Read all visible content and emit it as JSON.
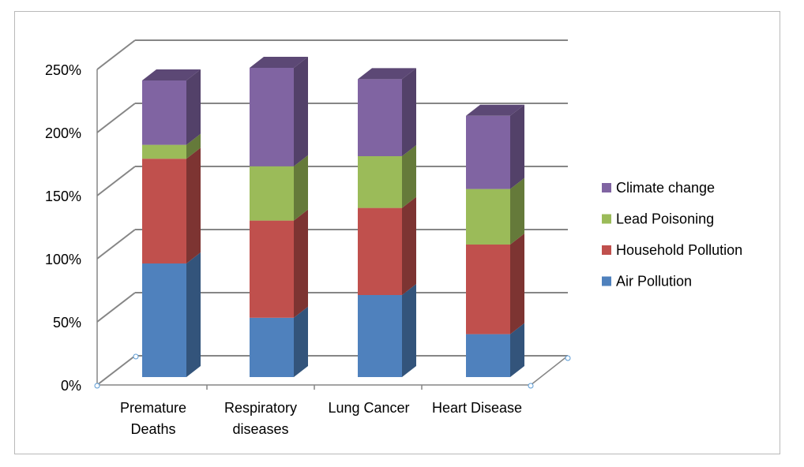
{
  "chart_data": {
    "type": "bar",
    "stacked": true,
    "three_d": true,
    "title": "",
    "xlabel": "",
    "ylabel": "",
    "categories": [
      [
        "Premature",
        "Deaths"
      ],
      [
        "Respiratory",
        "diseases"
      ],
      [
        "Lung Cancer"
      ],
      [
        "Heart Disease"
      ]
    ],
    "series": [
      {
        "name": "Air Pollution",
        "color": "#4f81bd",
        "values": [
          90,
          47,
          65,
          34
        ]
      },
      {
        "name": "Household Pollution",
        "color": "#c0504d",
        "values": [
          83,
          77,
          69,
          71
        ]
      },
      {
        "name": "Lead Poisoning",
        "color": "#9bbb59",
        "values": [
          11,
          43,
          41,
          44
        ]
      },
      {
        "name": "Climate change",
        "color": "#8064a2",
        "values": [
          51,
          78,
          61,
          58
        ]
      }
    ],
    "y_ticks": [
      "0%",
      "50%",
      "100%",
      "150%",
      "200%",
      "250%"
    ],
    "ylim": [
      0,
      250
    ],
    "grid": true,
    "legend_position": "right",
    "legend_order": [
      "Climate change",
      "Lead Poisoning",
      "Household Pollution",
      "Air Pollution"
    ]
  }
}
